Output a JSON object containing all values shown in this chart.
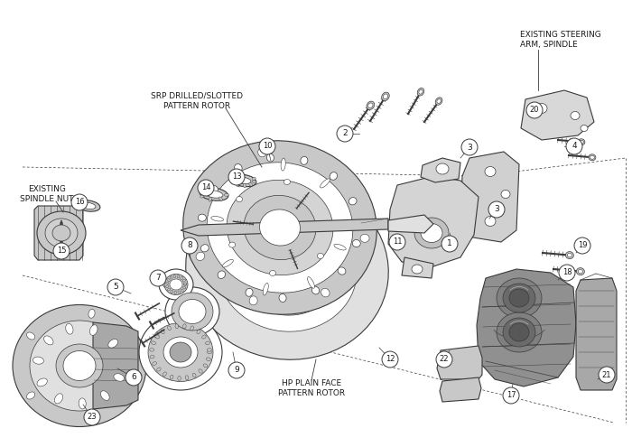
{
  "background_color": "#ffffff",
  "line_color": "#3a3a3a",
  "light_gray": "#c8c8c8",
  "mid_gray": "#a8a8a8",
  "dark_gray": "#707070",
  "text_color": "#1a1a1a",
  "labels": {
    "srp_rotor": "SRP DRILLED/SLOTTED\nPATTERN ROTOR",
    "hp_rotor": "HP PLAIN FACE\nPATTERN ROTOR",
    "spindle_nut": "EXISTING\nSPINDLE NUT",
    "steering_arm": "EXISTING STEERING\nARM, SPINDLE"
  }
}
